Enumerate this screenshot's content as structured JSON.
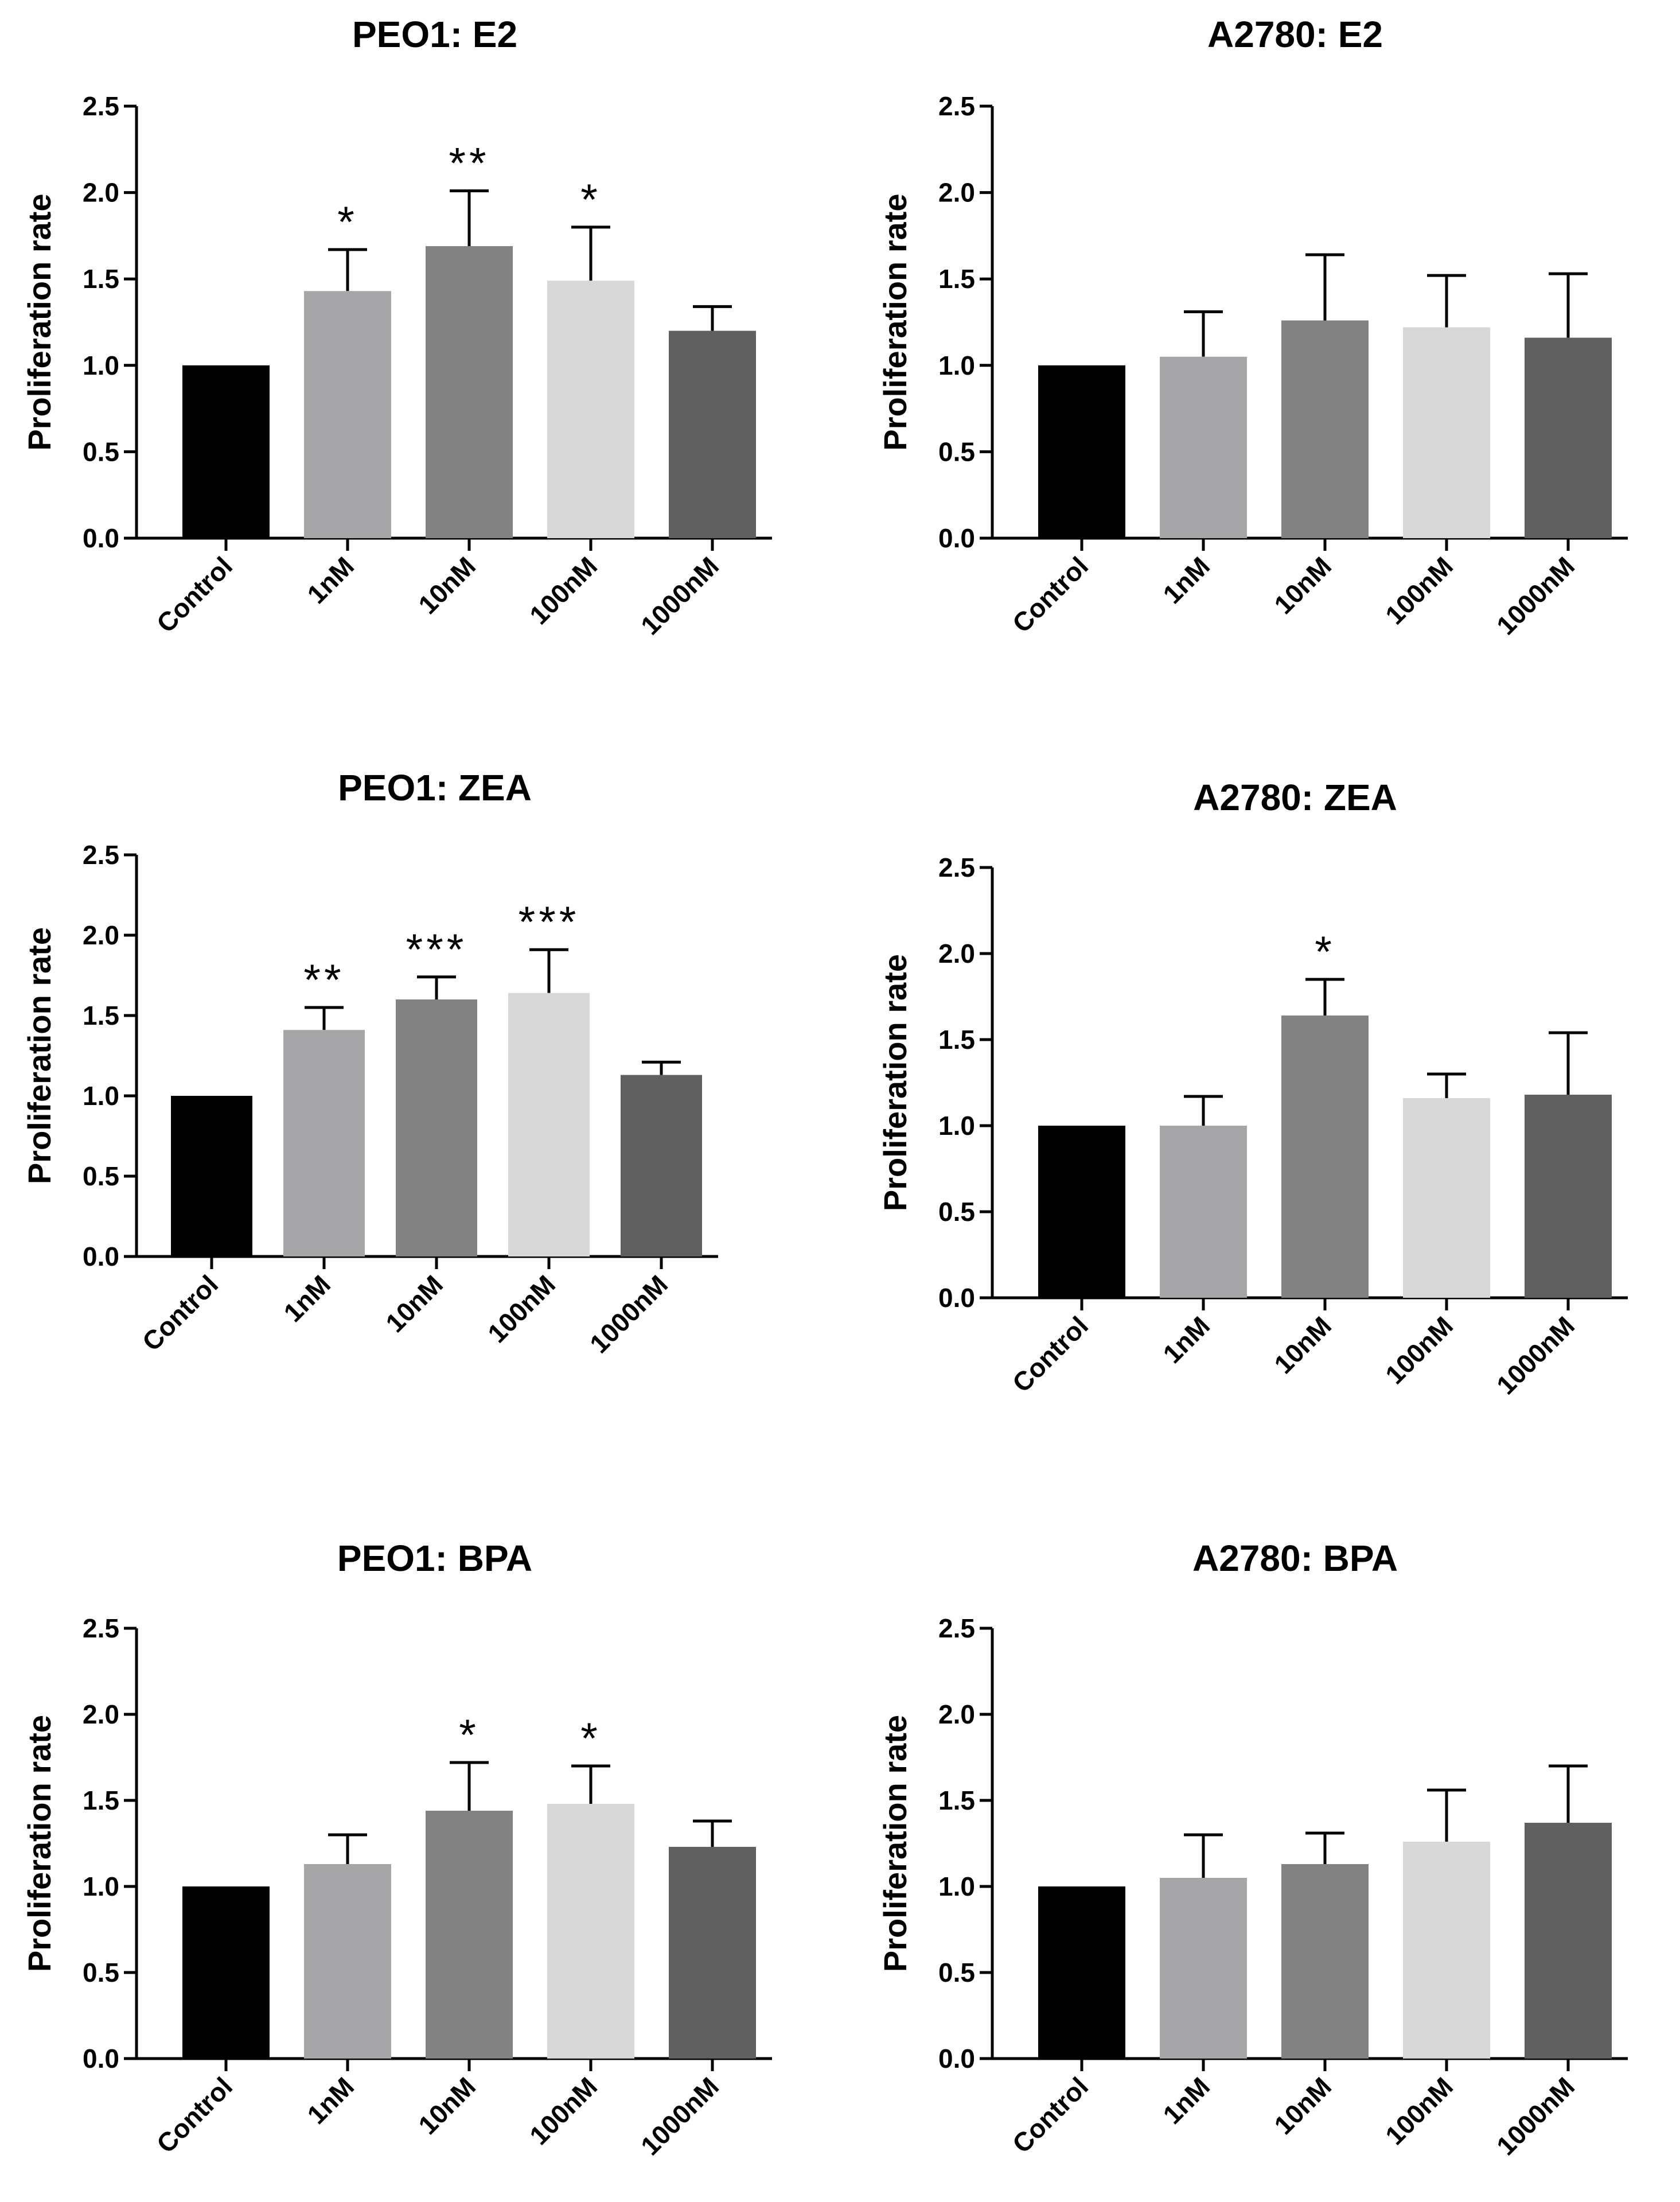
{
  "chart_data": [
    {
      "type": "bar",
      "title": "PEO1: E2",
      "ylabel": "Proliferation rate",
      "ylim": [
        0,
        2.5
      ],
      "yticks": [
        "0.0",
        "0.5",
        "1.0",
        "1.5",
        "2.0",
        "2.5"
      ],
      "categories": [
        "Control",
        "1nM",
        "10nM",
        "100nM",
        "1000nM"
      ],
      "values": [
        1.0,
        1.43,
        1.69,
        1.49,
        1.2
      ],
      "errors": [
        0,
        0.24,
        0.32,
        0.31,
        0.14
      ],
      "significance": [
        "",
        "*",
        "**",
        "*",
        ""
      ],
      "colors": [
        "#000000",
        "#a6a6a8",
        "#828282",
        "#d8d8d8",
        "#606060"
      ]
    },
    {
      "type": "bar",
      "title": "A2780: E2",
      "ylabel": "Proliferation rate",
      "ylim": [
        0,
        2.5
      ],
      "yticks": [
        "0.0",
        "0.5",
        "1.0",
        "1.5",
        "2.0",
        "2.5"
      ],
      "categories": [
        "Control",
        "1nM",
        "10nM",
        "100nM",
        "1000nM"
      ],
      "values": [
        1.0,
        1.05,
        1.26,
        1.22,
        1.16
      ],
      "errors": [
        0,
        0.26,
        0.38,
        0.3,
        0.37
      ],
      "significance": [
        "",
        "",
        "",
        "",
        ""
      ],
      "colors": [
        "#000000",
        "#a6a6a8",
        "#828282",
        "#d8d8d8",
        "#606060"
      ]
    },
    {
      "type": "bar",
      "title": "PEO1: ZEA",
      "ylabel": "Proliferation rate",
      "ylim": [
        0,
        2.5
      ],
      "yticks": [
        "0.0",
        "0.5",
        "1.0",
        "1.5",
        "2.0",
        "2.5"
      ],
      "categories": [
        "Control",
        "1nM",
        "10nM",
        "100nM",
        "1000nM"
      ],
      "values": [
        1.0,
        1.41,
        1.6,
        1.64,
        1.13
      ],
      "errors": [
        0,
        0.14,
        0.14,
        0.27,
        0.08
      ],
      "significance": [
        "",
        "**",
        "***",
        "***",
        ""
      ],
      "colors": [
        "#000000",
        "#a6a6a8",
        "#828282",
        "#d8d8d8",
        "#606060"
      ]
    },
    {
      "type": "bar",
      "title": "A2780: ZEA",
      "ylabel": "Proliferation rate",
      "ylim": [
        0,
        2.5
      ],
      "yticks": [
        "0.0",
        "0.5",
        "1.0",
        "1.5",
        "2.0",
        "2.5"
      ],
      "categories": [
        "Control",
        "1nM",
        "10nM",
        "100nM",
        "1000nM"
      ],
      "values": [
        1.0,
        1.0,
        1.64,
        1.16,
        1.18
      ],
      "errors": [
        0,
        0.17,
        0.21,
        0.14,
        0.36
      ],
      "significance": [
        "",
        "",
        "*",
        "",
        ""
      ],
      "colors": [
        "#000000",
        "#a6a6a8",
        "#828282",
        "#d8d8d8",
        "#606060"
      ]
    },
    {
      "type": "bar",
      "title": "PEO1: BPA",
      "ylabel": "Proliferation rate",
      "ylim": [
        0,
        2.5
      ],
      "yticks": [
        "0.0",
        "0.5",
        "1.0",
        "1.5",
        "2.0",
        "2.5"
      ],
      "categories": [
        "Control",
        "1nM",
        "10nM",
        "100nM",
        "1000nM"
      ],
      "values": [
        1.0,
        1.13,
        1.44,
        1.48,
        1.23
      ],
      "errors": [
        0,
        0.17,
        0.28,
        0.22,
        0.15
      ],
      "significance": [
        "",
        "",
        "*",
        "*",
        ""
      ],
      "colors": [
        "#000000",
        "#a6a6a8",
        "#828282",
        "#d8d8d8",
        "#606060"
      ]
    },
    {
      "type": "bar",
      "title": "A2780: BPA",
      "ylabel": "Proliferation rate",
      "ylim": [
        0,
        2.5
      ],
      "yticks": [
        "0.0",
        "0.5",
        "1.0",
        "1.5",
        "2.0",
        "2.5"
      ],
      "categories": [
        "Control",
        "1nM",
        "10nM",
        "100nM",
        "1000nM"
      ],
      "values": [
        1.0,
        1.05,
        1.13,
        1.26,
        1.37
      ],
      "errors": [
        0,
        0.25,
        0.18,
        0.3,
        0.33
      ],
      "significance": [
        "",
        "",
        "",
        "",
        ""
      ],
      "colors": [
        "#000000",
        "#a6a6a8",
        "#828282",
        "#d8d8d8",
        "#606060"
      ]
    }
  ]
}
